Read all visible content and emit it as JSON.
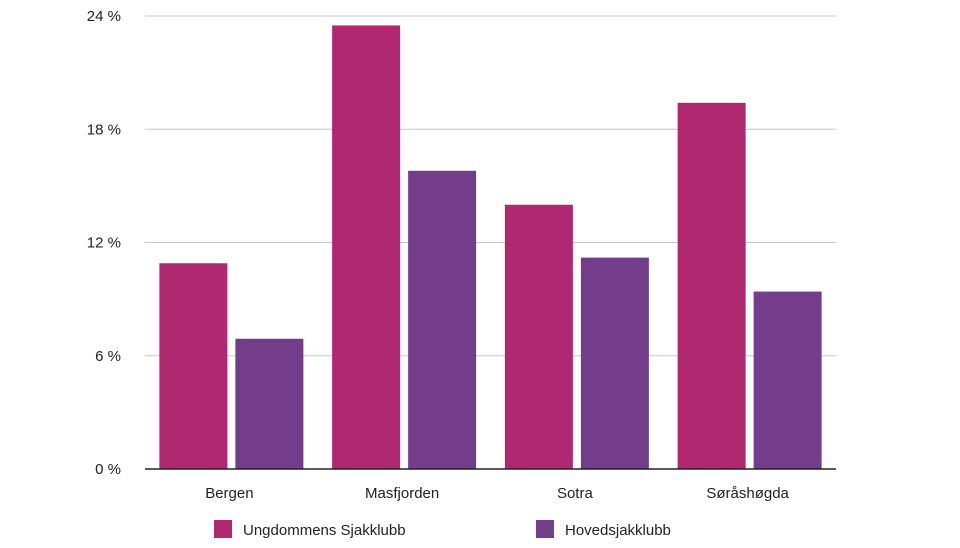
{
  "chart_data": {
    "type": "bar",
    "title": "",
    "xlabel": "",
    "ylabel": "",
    "categories": [
      "Bergen",
      "Masfjorden",
      "Sotra",
      "Søråshøgda"
    ],
    "series": [
      {
        "name": "Ungdommens Sjakklubb",
        "color": "#b0286f",
        "values": [
          10.9,
          23.5,
          14.0,
          19.4
        ]
      },
      {
        "name": "Hovedsjakklubb",
        "color": "#743d8c",
        "values": [
          6.9,
          15.8,
          11.2,
          9.4
        ]
      }
    ],
    "ylim": [
      0,
      24
    ],
    "yticks": [
      {
        "value": 0,
        "label": "0 %"
      },
      {
        "value": 6,
        "label": "6 %"
      },
      {
        "value": 12,
        "label": "12 %"
      },
      {
        "value": 18,
        "label": "18 %"
      },
      {
        "value": 24,
        "label": "24 %"
      }
    ],
    "grid": true,
    "legend_position": "bottom"
  }
}
